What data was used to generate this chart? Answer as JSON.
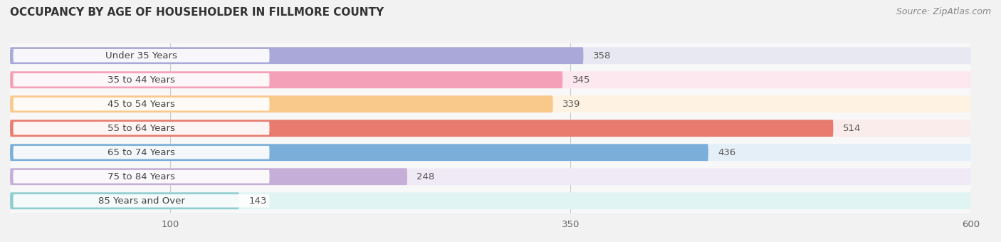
{
  "title": "OCCUPANCY BY AGE OF HOUSEHOLDER IN FILLMORE COUNTY",
  "source": "Source: ZipAtlas.com",
  "categories": [
    "Under 35 Years",
    "35 to 44 Years",
    "45 to 54 Years",
    "55 to 64 Years",
    "65 to 74 Years",
    "75 to 84 Years",
    "85 Years and Over"
  ],
  "values": [
    358,
    345,
    339,
    514,
    436,
    248,
    143
  ],
  "bar_colors": [
    "#a9a8d8",
    "#f4a0b8",
    "#f8c98a",
    "#e87b6e",
    "#7baed8",
    "#c5afd8",
    "#8ecece"
  ],
  "bar_bg_colors": [
    "#e8e8f2",
    "#fde8ef",
    "#fef3e2",
    "#faecea",
    "#e4eff8",
    "#f0eaf6",
    "#e0f4f4"
  ],
  "xlim_data": [
    0,
    600
  ],
  "xticks": [
    100,
    350,
    600
  ],
  "title_fontsize": 11,
  "source_fontsize": 9,
  "label_fontsize": 9.5,
  "value_fontsize": 9.5,
  "background_color": "#f2f2f2",
  "bar_area_bg": "#f8f8f8"
}
